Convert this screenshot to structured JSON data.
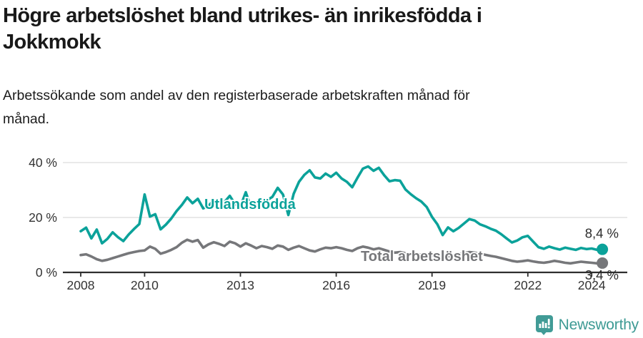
{
  "header": {
    "title": "Högre arbetslöshet bland utrikes- än inrikesfödda i Jokkmokk",
    "title_lines": [
      "Högre arbetslöshet bland utrikes- än inrikesfödda i",
      "Jokkmokk"
    ],
    "subtitle": "Arbetssökande som andel av den registerbaserade arbetskraften månad för månad.",
    "subtitle_lines": [
      "Arbetssökande som andel av den registerbaserade arbetskraften månad för",
      "månad."
    ]
  },
  "colors": {
    "series_utlandsfodda": "#0ba29a",
    "series_total": "#76777a",
    "axis_line": "#2e2e2e",
    "axis_text": "#333333",
    "grid": "#dcdcdc",
    "title_text": "#191919",
    "logo": "#3d9a94"
  },
  "chart_data": {
    "type": "line",
    "title": "Högre arbetslöshet bland utrikes- än inrikesfödda i Jokkmokk",
    "subtitle": "Arbetssökande som andel av den registerbaserade arbetskraften månad för månad.",
    "x_unit": "decimal_year",
    "x_start": 2008,
    "x_step": 0.16667,
    "xlim": [
      2007.45,
      2025.1
    ],
    "ylim": [
      0,
      43
    ],
    "grid": "horizontal",
    "legend": "inline-labels",
    "x_ticks": [
      2008,
      2010,
      2013,
      2016,
      2019,
      2022,
      2024
    ],
    "x_tick_labels": [
      "2008",
      "2010",
      "2013",
      "2016",
      "2019",
      "2022",
      "2024"
    ],
    "y_ticks": [
      0,
      20,
      40
    ],
    "y_tick_labels": [
      "0 %",
      "20 %",
      "40 %"
    ],
    "series": [
      {
        "name": "Utlandsfödda",
        "color": "#0ba29a",
        "end_label": "8,4 %",
        "end_value": 8.4,
        "values": [
          15.0,
          16.3,
          12.4,
          15.6,
          10.6,
          12.2,
          14.6,
          12.8,
          11.4,
          13.8,
          15.8,
          17.6,
          28.4,
          20.3,
          21.2,
          15.7,
          17.4,
          19.6,
          22.3,
          24.6,
          27.3,
          25.2,
          26.8,
          23.3,
          24.2,
          26.4,
          23.2,
          25.6,
          27.9,
          24.8,
          24.0,
          29.2,
          23.5,
          25.4,
          24.0,
          26.3,
          27.5,
          30.8,
          28.4,
          20.9,
          28.6,
          33.0,
          35.5,
          37.2,
          34.6,
          34.2,
          36.0,
          34.8,
          36.3,
          34.2,
          33.0,
          31.0,
          34.5,
          37.8,
          38.6,
          37.0,
          38.1,
          35.4,
          33.2,
          33.6,
          33.4,
          30.2,
          28.5,
          27.0,
          25.8,
          23.8,
          20.2,
          17.5,
          13.6,
          16.4,
          15.0,
          16.2,
          17.8,
          19.4,
          18.9,
          17.5,
          16.8,
          15.9,
          15.2,
          13.9,
          12.4,
          10.9,
          11.6,
          12.8,
          13.3,
          11.2,
          9.2,
          8.6,
          9.4,
          8.8,
          8.3,
          9.0,
          8.6,
          8.2,
          8.9,
          8.5,
          8.7,
          8.2,
          8.4
        ]
      },
      {
        "name": "Total arbetslöshet",
        "color": "#76777a",
        "end_label": "3,4 %",
        "end_value": 3.4,
        "values": [
          6.3,
          6.6,
          5.8,
          4.8,
          4.2,
          4.6,
          5.2,
          5.8,
          6.4,
          7.0,
          7.4,
          7.8,
          8.0,
          9.4,
          8.6,
          6.8,
          7.4,
          8.2,
          9.2,
          10.8,
          11.9,
          11.2,
          11.8,
          9.0,
          10.2,
          11.0,
          10.4,
          9.6,
          11.2,
          10.6,
          9.4,
          10.6,
          9.8,
          8.8,
          9.6,
          9.2,
          8.6,
          9.8,
          9.4,
          8.2,
          9.0,
          9.6,
          8.8,
          8.0,
          7.6,
          8.4,
          9.0,
          8.8,
          9.2,
          8.8,
          8.2,
          7.8,
          8.8,
          9.4,
          9.0,
          8.4,
          8.8,
          8.2,
          7.6,
          7.2,
          7.4,
          7.0,
          6.6,
          6.8,
          6.4,
          6.0,
          6.2,
          5.8,
          5.4,
          5.8,
          6.2,
          6.6,
          7.0,
          7.4,
          7.2,
          6.8,
          6.4,
          6.0,
          5.7,
          5.2,
          4.7,
          4.2,
          3.9,
          4.1,
          4.4,
          4.0,
          3.7,
          3.5,
          3.8,
          4.2,
          3.9,
          3.5,
          3.3,
          3.6,
          3.9,
          3.7,
          3.5,
          3.3,
          3.4
        ]
      }
    ]
  },
  "branding": {
    "logo_text": "Newsworthy",
    "logo_icon": "speech-bubble-bar-chart-icon",
    "logo_color": "#3d9a94"
  }
}
